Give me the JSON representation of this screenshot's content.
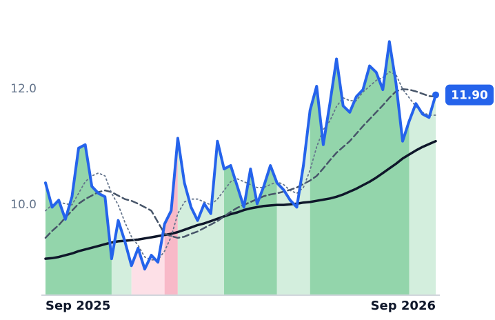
{
  "chart_data": {
    "type": "line",
    "categories": [
      "Sep 2025",
      null,
      null,
      null,
      null,
      null,
      null,
      null,
      null,
      null,
      null,
      null,
      null,
      null,
      null,
      null,
      null,
      null,
      null,
      null,
      null,
      null,
      null,
      null,
      null,
      null,
      null,
      null,
      null,
      null,
      null,
      null,
      null,
      null,
      null,
      null,
      null,
      null,
      null,
      null,
      null,
      null,
      null,
      null,
      null,
      null,
      null,
      null,
      null,
      null,
      null,
      null,
      null,
      null,
      null,
      null,
      null,
      null,
      null,
      "Sep 2026"
    ],
    "ylim": [
      8.44,
      13.42
    ],
    "yticks": [
      {
        "value": 10,
        "label": "10.0"
      },
      {
        "value": 12,
        "label": "12.0"
      }
    ],
    "series": [
      {
        "color": "#0f172a",
        "dash": "solid",
        "values": [
          9.07,
          9.08,
          9.1,
          9.13,
          9.16,
          9.2,
          9.23,
          9.26,
          9.29,
          9.32,
          9.35,
          9.37,
          9.38,
          9.39,
          9.4,
          9.42,
          9.44,
          9.46,
          9.48,
          9.5,
          9.53,
          9.57,
          9.61,
          9.65,
          9.68,
          9.72,
          9.76,
          9.8,
          9.84,
          9.87,
          9.91,
          9.94,
          9.96,
          9.98,
          9.99,
          10.0,
          10.0,
          10.01,
          10.02,
          10.04,
          10.05,
          10.07,
          10.09,
          10.11,
          10.14,
          10.18,
          10.23,
          10.28,
          10.34,
          10.4,
          10.47,
          10.55,
          10.63,
          10.71,
          10.8,
          10.87,
          10.94,
          11.0,
          11.05,
          11.1
        ]
      },
      {
        "color": "#475569",
        "dash": "dashed",
        "values": [
          9.43,
          9.55,
          9.65,
          9.78,
          9.9,
          10.02,
          10.1,
          10.16,
          10.22,
          10.25,
          10.22,
          10.16,
          10.1,
          10.07,
          10.02,
          9.96,
          9.9,
          9.7,
          9.5,
          9.46,
          9.43,
          9.45,
          9.5,
          9.54,
          9.6,
          9.66,
          9.72,
          9.8,
          9.88,
          9.95,
          10.0,
          10.05,
          10.1,
          10.15,
          10.18,
          10.2,
          10.23,
          10.26,
          10.3,
          10.36,
          10.42,
          10.5,
          10.63,
          10.77,
          10.9,
          11.0,
          11.1,
          11.23,
          11.36,
          11.48,
          11.6,
          11.72,
          11.85,
          11.96,
          12.0,
          11.99,
          11.96,
          11.92,
          11.88,
          11.87
        ]
      },
      {
        "color": "#64748b",
        "dash": "dotted",
        "values": [
          9.9,
          10.0,
          10.05,
          10.02,
          10.0,
          10.2,
          10.4,
          10.5,
          10.55,
          10.5,
          10.2,
          10.0,
          9.7,
          9.45,
          9.3,
          9.1,
          9.05,
          9.05,
          9.2,
          9.45,
          9.85,
          10.05,
          10.1,
          10.1,
          10.05,
          10.0,
          10.1,
          10.25,
          10.4,
          10.45,
          10.4,
          10.35,
          10.3,
          10.3,
          10.35,
          10.4,
          10.35,
          10.25,
          10.2,
          10.3,
          10.6,
          11.0,
          11.3,
          11.45,
          11.7,
          11.85,
          11.8,
          11.8,
          11.95,
          12.05,
          12.15,
          12.2,
          12.3,
          12.25,
          12.0,
          11.85,
          11.7,
          11.6,
          11.55,
          11.55
        ]
      },
      {
        "color": "#2563eb",
        "dash": "solid",
        "main": true,
        "values": [
          10.38,
          9.96,
          10.08,
          9.75,
          10.14,
          10.98,
          11.04,
          10.32,
          10.2,
          10.14,
          9.07,
          9.73,
          9.37,
          8.95,
          9.25,
          8.89,
          9.13,
          9.01,
          9.67,
          9.9,
          11.15,
          10.38,
          9.96,
          9.73,
          10.02,
          9.85,
          11.1,
          10.62,
          10.68,
          10.32,
          9.96,
          10.62,
          10.02,
          10.32,
          10.68,
          10.38,
          10.26,
          10.08,
          9.96,
          10.68,
          11.63,
          12.05,
          11.04,
          11.75,
          12.52,
          11.71,
          11.6,
          11.87,
          11.99,
          12.4,
          12.29,
          11.99,
          12.82,
          12.1,
          11.1,
          11.45,
          11.75,
          11.57,
          11.51,
          11.9
        ],
        "value_labels": [
          null,
          null,
          null,
          null,
          null,
          null,
          null,
          null,
          null,
          null,
          null,
          null,
          null,
          null,
          null,
          null,
          null,
          null,
          null,
          null,
          null,
          null,
          null,
          null,
          null,
          null,
          null,
          null,
          null,
          null,
          null,
          null,
          null,
          null,
          null,
          null,
          null,
          null,
          null,
          null,
          null,
          null,
          null,
          null,
          null,
          null,
          null,
          null,
          null,
          null,
          null,
          null,
          null,
          null,
          null,
          null,
          null,
          null,
          null,
          "11.90"
        ]
      }
    ],
    "regions": [
      {
        "from": 0,
        "to": 10,
        "color": "#93d5ab"
      },
      {
        "from": 10,
        "to": 13,
        "color": "#d3eedd"
      },
      {
        "from": 13,
        "to": 18,
        "color": "#fde0e7"
      },
      {
        "from": 18,
        "to": 20,
        "color": "#f8b9c8"
      },
      {
        "from": 20,
        "to": 27,
        "color": "#d3eedd"
      },
      {
        "from": 27,
        "to": 35,
        "color": "#93d5ab"
      },
      {
        "from": 35,
        "to": 40,
        "color": "#d3eedd"
      },
      {
        "from": 40,
        "to": 55,
        "color": "#93d5ab"
      },
      {
        "from": 55,
        "to": 59,
        "color": "#d3eedd"
      }
    ]
  }
}
